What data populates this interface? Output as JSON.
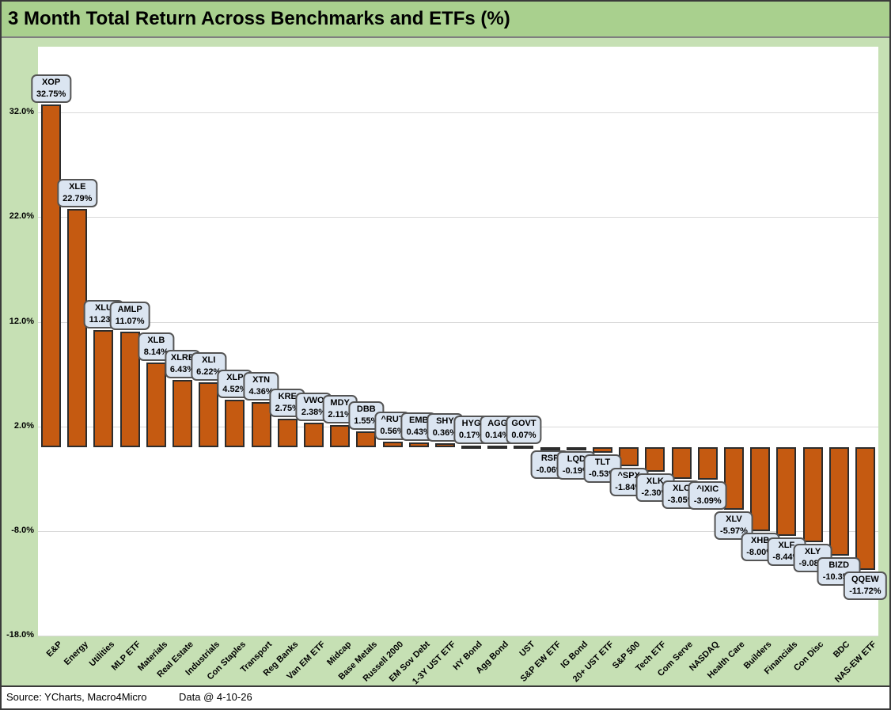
{
  "title": "3 Month Total Return Across Benchmarks and ETFs (%)",
  "footer": {
    "source": "Source: YCharts, Macro4Micro",
    "data_date": "Data @ 4-10-26"
  },
  "colors": {
    "title_bg": "#a9d08e",
    "chart_bg": "#c6e0b4",
    "plot_bg": "#ffffff",
    "gridline": "#d9d9d9",
    "bar_fill": "#c55a11",
    "bar_border": "#2d2d2d",
    "callout_bg": "#dbe5f1",
    "callout_border": "#545454",
    "text": "#000000"
  },
  "chart_data": {
    "type": "bar",
    "title": "3 Month Total Return Across Benchmarks and ETFs (%)",
    "xlabel": "",
    "ylabel": "",
    "ylim": [
      -18,
      38.3
    ],
    "grid": true,
    "legend": "none",
    "y_ticks": [
      {
        "value": 32,
        "label": "32.0%"
      },
      {
        "value": 22,
        "label": "22.0%"
      },
      {
        "value": 12,
        "label": "12.0%"
      },
      {
        "value": 2,
        "label": "2.0%"
      },
      {
        "value": -8,
        "label": "-8.0%"
      },
      {
        "value": -18,
        "label": "-18.0%"
      }
    ],
    "points": [
      {
        "category": "E&P",
        "ticker": "XOP",
        "value": 32.75,
        "value_label": "32.75%"
      },
      {
        "category": "Energy",
        "ticker": "XLE",
        "value": 22.79,
        "value_label": "22.79%"
      },
      {
        "category": "Utilities",
        "ticker": "XLU",
        "value": 11.23,
        "value_label": "11.23%"
      },
      {
        "category": "MLP ETF",
        "ticker": "AMLP",
        "value": 11.07,
        "value_label": "11.07%"
      },
      {
        "category": "Materials",
        "ticker": "XLB",
        "value": 8.14,
        "value_label": "8.14%"
      },
      {
        "category": "Real Estate",
        "ticker": "XLRE",
        "value": 6.43,
        "value_label": "6.43%"
      },
      {
        "category": "Industrials",
        "ticker": "XLI",
        "value": 6.22,
        "value_label": "6.22%"
      },
      {
        "category": "Con Staples",
        "ticker": "XLP",
        "value": 4.52,
        "value_label": "4.52%"
      },
      {
        "category": "Transport",
        "ticker": "XTN",
        "value": 4.36,
        "value_label": "4.36%"
      },
      {
        "category": "Reg Banks",
        "ticker": "KRE",
        "value": 2.75,
        "value_label": "2.75%"
      },
      {
        "category": "Van EM ETF",
        "ticker": "VWO",
        "value": 2.38,
        "value_label": "2.38%"
      },
      {
        "category": "Midcap",
        "ticker": "MDY",
        "value": 2.11,
        "value_label": "2.11%"
      },
      {
        "category": "Base Metals",
        "ticker": "DBB",
        "value": 1.55,
        "value_label": "1.55%"
      },
      {
        "category": "Russell 2000",
        "ticker": "^RUT",
        "value": 0.56,
        "value_label": "0.56%"
      },
      {
        "category": "EM Sov Debt",
        "ticker": "EMB",
        "value": 0.43,
        "value_label": "0.43%"
      },
      {
        "category": "1-3Y UST ETF",
        "ticker": "SHY",
        "value": 0.36,
        "value_label": "0.36%"
      },
      {
        "category": "HY Bond",
        "ticker": "HYG",
        "value": 0.17,
        "value_label": "0.17%"
      },
      {
        "category": "Agg Bond",
        "ticker": "AGG",
        "value": 0.14,
        "value_label": "0.14%"
      },
      {
        "category": "UST",
        "ticker": "GOVT",
        "value": 0.07,
        "value_label": "0.07%"
      },
      {
        "category": "S&P EW ETF",
        "ticker": "RSP",
        "value": -0.06,
        "value_label": "-0.06%"
      },
      {
        "category": "IG Bond",
        "ticker": "LQD",
        "value": -0.19,
        "value_label": "-0.19%"
      },
      {
        "category": "20+ UST ETF",
        "ticker": "TLT",
        "value": -0.53,
        "value_label": "-0.53%"
      },
      {
        "category": "S&P 500",
        "ticker": "^SPX",
        "value": -1.84,
        "value_label": "-1.84%"
      },
      {
        "category": "Tech ETF",
        "ticker": "XLK",
        "value": -2.3,
        "value_label": "-2.30%"
      },
      {
        "category": "Com Serve",
        "ticker": "XLC",
        "value": -3.05,
        "value_label": "-3.05%"
      },
      {
        "category": "NASDAQ",
        "ticker": "^IXIC",
        "value": -3.09,
        "value_label": "-3.09%"
      },
      {
        "category": "Health Care",
        "ticker": "XLV",
        "value": -5.97,
        "value_label": "-5.97%"
      },
      {
        "category": "Builders",
        "ticker": "XHB",
        "value": -8.0,
        "value_label": "-8.00%"
      },
      {
        "category": "Financials",
        "ticker": "XLF",
        "value": -8.44,
        "value_label": "-8.44%"
      },
      {
        "category": "Con Disc",
        "ticker": "XLY",
        "value": -9.08,
        "value_label": "-9.08%"
      },
      {
        "category": "BDC",
        "ticker": "BIZD",
        "value": -10.35,
        "value_label": "-10.35%"
      },
      {
        "category": "NAS-EW ETF",
        "ticker": "QQEW",
        "value": -11.72,
        "value_label": "-11.72%"
      }
    ]
  }
}
